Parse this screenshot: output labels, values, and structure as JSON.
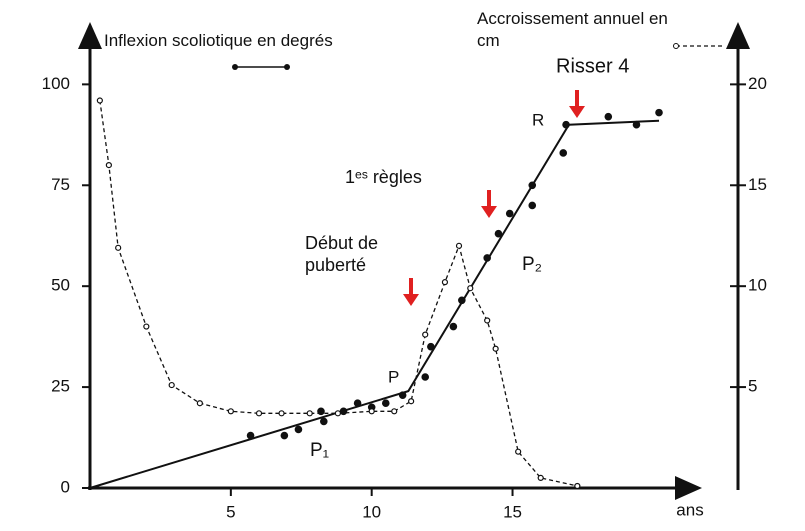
{
  "chart_data": {
    "type": "scatter",
    "xlim": [
      0,
      21.3
    ],
    "xticks": [
      5,
      10,
      15
    ],
    "xlabel": "ans",
    "ylim": [
      0,
      110
    ],
    "yticks": [
      0,
      25,
      50,
      75,
      100
    ],
    "y2lim": [
      0,
      22
    ],
    "y2ticks": [
      5,
      10,
      15,
      20
    ],
    "series": [
      {
        "name": "Inflexion scoliotique en degrés",
        "color": "#111111",
        "marker": "filled",
        "axis": "y",
        "x": [
          5.7,
          6.9,
          7.4,
          8.2,
          8.3,
          9.0,
          9.5,
          10.0,
          10.5,
          11.1,
          11.9,
          12.1,
          12.9,
          13.2,
          14.1,
          14.5,
          14.9,
          15.7,
          15.7,
          16.8,
          16.9,
          18.4,
          19.4,
          20.2
        ],
        "values": [
          13,
          13,
          14.5,
          19,
          16.5,
          19,
          21,
          20,
          21,
          23,
          27.5,
          35,
          40,
          46.5,
          57,
          63,
          68,
          70,
          75,
          83,
          90,
          92,
          90,
          93
        ]
      },
      {
        "name": "Accroissement annuel en cm",
        "color": "#111111",
        "marker": "hollow",
        "axis": "y2",
        "x": [
          0.35,
          0.67,
          1.0,
          2.0,
          2.9,
          3.9,
          5.0,
          6.0,
          6.8,
          7.8,
          8.8,
          10.0,
          10.8,
          11.4,
          11.9,
          12.6,
          13.1,
          13.5,
          14.1,
          14.4,
          15.2,
          16.0,
          17.3
        ],
        "values": [
          19.2,
          16,
          11.9,
          8,
          5.1,
          4.2,
          3.8,
          3.7,
          3.7,
          3.7,
          3.7,
          3.8,
          3.8,
          4.3,
          7.6,
          10.2,
          12,
          9.9,
          8.3,
          6.9,
          1.8,
          0.5,
          0.1
        ]
      }
    ],
    "trend": {
      "x": [
        0,
        11.3,
        17,
        20.2
      ],
      "values": [
        0,
        24,
        90,
        91
      ]
    },
    "annotations": [
      "Risser 4",
      "R",
      "1ᵉˢ règles",
      "Début de puberté",
      "P",
      "P₂",
      "P₁"
    ]
  }
}
